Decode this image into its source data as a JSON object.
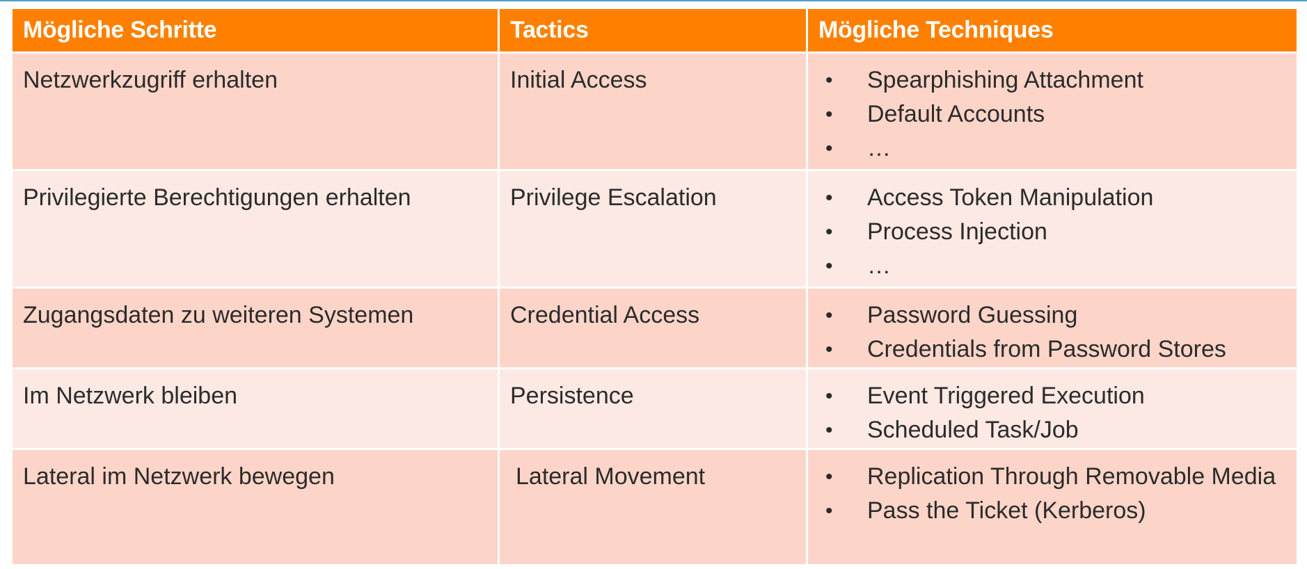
{
  "table": {
    "headers": [
      "Mögliche Schritte",
      "Tactics",
      "Mögliche Techniques"
    ],
    "rows": [
      {
        "step": "Netzwerkzugriff erhalten",
        "tactic": "Initial Access",
        "techniques": [
          "Spearphishing Attachment",
          "Default Accounts",
          "…"
        ]
      },
      {
        "step": "Privilegierte Berechtigungen erhalten",
        "tactic": "Privilege Escalation",
        "techniques": [
          "Access Token Manipulation",
          "Process Injection",
          "…"
        ]
      },
      {
        "step": "Zugangsdaten zu weiteren Systemen",
        "tactic": "Credential Access",
        "techniques": [
          "Password Guessing",
          "Credentials from Password Stores"
        ]
      },
      {
        "step": "Im Netzwerk bleiben",
        "tactic": "Persistence",
        "techniques": [
          "Event Triggered Execution",
          "Scheduled Task/Job"
        ]
      },
      {
        "step": "Lateral im Netzwerk bewegen",
        "tactic": "Lateral Movement",
        "techniques": [
          "Replication Through Removable Media",
          "Pass the Ticket (Kerberos)"
        ]
      }
    ],
    "bullet": "•"
  },
  "colors": {
    "header": "#ff8000",
    "row_dark": "#fdd5c8",
    "row_light": "#fde9e3",
    "accent_line": "#4aa0c8"
  }
}
